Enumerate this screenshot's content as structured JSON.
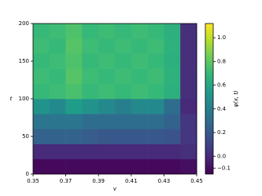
{
  "chart_data": {
    "type": "heatmap",
    "xlabel": "v",
    "ylabel": "t",
    "colorbar_label": "φ(x, t)",
    "xbins": [
      0.35,
      0.36,
      0.37,
      0.38,
      0.39,
      0.4,
      0.41,
      0.42,
      0.43,
      0.44,
      0.45
    ],
    "ybins": [
      0,
      20,
      40,
      60,
      80,
      100,
      120,
      140,
      160,
      180,
      200
    ],
    "z": [
      [
        -0.12,
        -0.12,
        -0.12,
        -0.12,
        -0.12,
        -0.12,
        -0.12,
        -0.12,
        -0.12,
        -0.1
      ],
      [
        0.0,
        0.0,
        0.0,
        0.0,
        0.0,
        0.0,
        0.0,
        0.0,
        0.0,
        0.02
      ],
      [
        0.25,
        0.25,
        0.25,
        0.22,
        0.2,
        0.2,
        0.2,
        0.2,
        0.18,
        0.05
      ],
      [
        0.35,
        0.35,
        0.35,
        0.3,
        0.3,
        0.3,
        0.3,
        0.3,
        0.25,
        0.05
      ],
      [
        0.5,
        0.45,
        0.55,
        0.5,
        0.45,
        0.4,
        0.45,
        0.45,
        0.3,
        0.0
      ],
      [
        0.7,
        0.72,
        0.75,
        0.7,
        0.72,
        0.7,
        0.72,
        0.7,
        0.65,
        0.02
      ],
      [
        0.72,
        0.7,
        0.78,
        0.72,
        0.7,
        0.72,
        0.7,
        0.72,
        0.66,
        0.02
      ],
      [
        0.7,
        0.72,
        0.76,
        0.7,
        0.72,
        0.7,
        0.72,
        0.7,
        0.65,
        0.02
      ],
      [
        0.72,
        0.7,
        0.78,
        0.72,
        0.7,
        0.72,
        0.7,
        0.72,
        0.66,
        0.02
      ],
      [
        0.7,
        0.72,
        0.76,
        0.7,
        0.72,
        0.7,
        0.72,
        0.7,
        0.65,
        0.02
      ]
    ],
    "xlim": [
      0.35,
      0.45
    ],
    "xticks": [
      0.35,
      0.37,
      0.39,
      0.41,
      0.43,
      0.45
    ],
    "ylim": [
      0,
      200
    ],
    "yticks": [
      0,
      50,
      100,
      150,
      200
    ],
    "zlim": [
      -0.15,
      1.12
    ],
    "zticks": [
      {
        "value": -0.1,
        "label": "−0.1"
      },
      {
        "value": 0,
        "label": "0.0"
      },
      0.2,
      0.4,
      0.6,
      0.8,
      {
        "value": 1,
        "label": "1.0"
      }
    ],
    "colormap": "viridis"
  }
}
